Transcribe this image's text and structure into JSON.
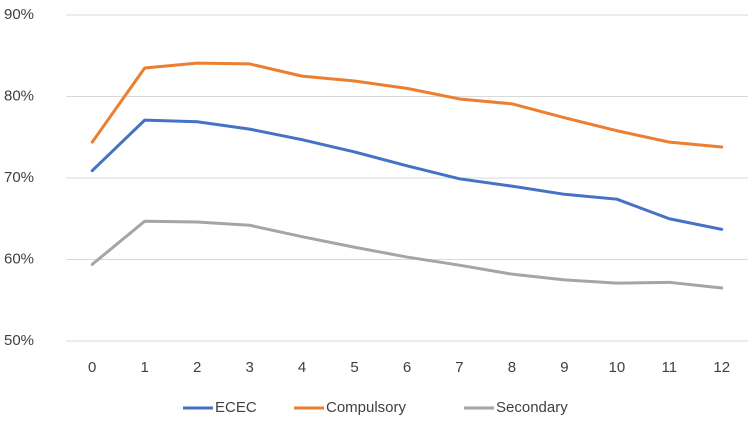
{
  "chart_data": {
    "type": "line",
    "x": [
      0,
      1,
      2,
      3,
      4,
      5,
      6,
      7,
      8,
      9,
      10,
      11,
      12
    ],
    "xlim": [
      -0.5,
      12.5
    ],
    "xticks": [
      0,
      1,
      2,
      3,
      4,
      5,
      6,
      7,
      8,
      9,
      10,
      11,
      12
    ],
    "ylim": [
      50,
      90
    ],
    "yticks": [
      {
        "value": 50,
        "label": "50%"
      },
      {
        "value": 60,
        "label": "60%"
      },
      {
        "value": 70,
        "label": "70%"
      },
      {
        "value": 80,
        "label": "80%"
      },
      {
        "value": 90,
        "label": "90%"
      }
    ],
    "grid": true,
    "legend": "bottom",
    "series": [
      {
        "name": "ECEC",
        "color": "#4472c4",
        "values": [
          70.9,
          77.1,
          76.9,
          76.0,
          74.7,
          73.2,
          71.5,
          69.9,
          69.0,
          68.0,
          67.4,
          65.0,
          63.7
        ]
      },
      {
        "name": "Compulsory",
        "color": "#ed7d31",
        "values": [
          74.4,
          83.5,
          84.1,
          84.0,
          82.5,
          81.9,
          81.0,
          79.7,
          79.1,
          77.4,
          75.8,
          74.4,
          73.8
        ]
      },
      {
        "name": "Secondary",
        "color": "#a5a5a5",
        "values": [
          59.4,
          64.7,
          64.6,
          64.2,
          62.8,
          61.5,
          60.3,
          59.3,
          58.2,
          57.5,
          57.1,
          57.2,
          56.5
        ]
      }
    ]
  }
}
